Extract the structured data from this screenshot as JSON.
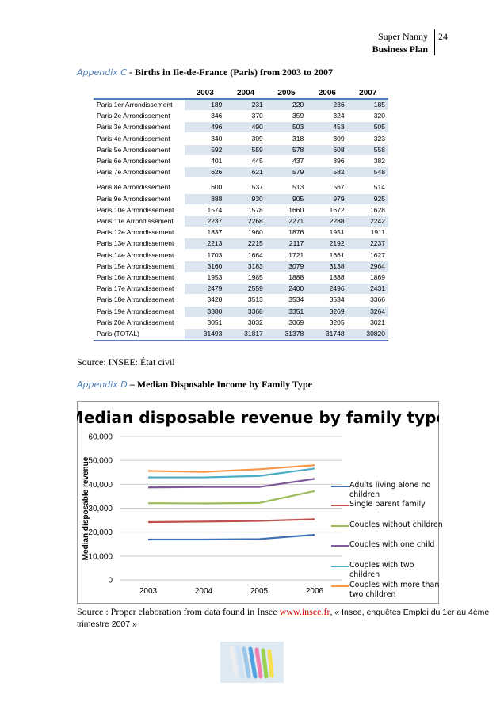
{
  "header": {
    "title": "Super Nanny",
    "subtitle": "Business Plan",
    "page": "24"
  },
  "appendix_c": {
    "label": "Appendix C",
    "title": "- Births in Ile-de-France (Paris) from 2003 to 2007"
  },
  "table": {
    "columns": [
      "2003",
      "2004",
      "2005",
      "2006",
      "2007"
    ],
    "rows": [
      [
        "Paris 1er Arrondissement",
        189,
        231,
        220,
        236,
        185
      ],
      [
        "Paris 2e  Arrondissement",
        346,
        370,
        359,
        324,
        320
      ],
      [
        "Paris 3e  Arrondissement",
        496,
        490,
        503,
        453,
        505
      ],
      [
        "Paris 4e  Arrondissement",
        340,
        309,
        318,
        309,
        323
      ],
      [
        "Paris 5e  Arrondissement",
        592,
        559,
        578,
        608,
        558
      ],
      [
        "Paris 6e  Arrondissement",
        401,
        445,
        437,
        396,
        382
      ],
      [
        "Paris 7e  Arrondissement",
        626,
        621,
        579,
        582,
        548
      ],
      [
        "Paris 8e  Arrondissement",
        600,
        537,
        513,
        567,
        514
      ],
      [
        "Paris 9e  Arrondissement",
        888,
        930,
        905,
        979,
        925
      ],
      [
        "Paris 10e  Arrondissement",
        1574,
        1578,
        1660,
        1672,
        1628
      ],
      [
        "Paris 11e  Arrondissement",
        2237,
        2268,
        2271,
        2288,
        2242
      ],
      [
        "Paris 12e  Arrondissement",
        1837,
        1960,
        1876,
        1951,
        1911
      ],
      [
        "Paris 13e  Arrondissement",
        2213,
        2215,
        2117,
        2192,
        2237
      ],
      [
        "Paris 14e  Arrondissement",
        1703,
        1664,
        1721,
        1661,
        1627
      ],
      [
        "Paris 15e  Arrondissement",
        3160,
        3183,
        3079,
        3138,
        2964
      ],
      [
        "Paris 16e  Arrondissement",
        1953,
        1985,
        1888,
        1888,
        1869
      ],
      [
        "Paris 17e  Arrondissement",
        2479,
        2559,
        2400,
        2496,
        2431
      ],
      [
        "Paris 18e  Arrondissement",
        3428,
        3513,
        3534,
        3534,
        3366
      ],
      [
        "Paris 19e  Arrondissement",
        3380,
        3368,
        3351,
        3269,
        3264
      ],
      [
        "Paris 20e  Arrondissement",
        3051,
        3032,
        3069,
        3205,
        3021
      ],
      [
        "Paris (TOTAL)",
        31493,
        31817,
        31378,
        31748,
        30820
      ]
    ]
  },
  "source_c": "Source: INSEE: État civil",
  "appendix_d": {
    "label": "Appendix D",
    "title": "– Median Disposable Income by Family Type"
  },
  "chart_data": {
    "type": "line",
    "title": "Median disposable revenue by family type",
    "y_label": "Median disposable revenue",
    "categories": [
      "2003",
      "2004",
      "2005",
      "2006"
    ],
    "ylim": [
      0,
      60000
    ],
    "yticks": [
      0,
      {
        "value": 10000,
        "label": "10,000"
      },
      {
        "value": 20000,
        "label": "20,000"
      },
      {
        "value": 30000,
        "label": "30,000"
      },
      {
        "value": 40000,
        "label": "40,000"
      },
      {
        "value": 50000,
        "label": "50,000"
      },
      {
        "value": 60000,
        "label": "60,000"
      }
    ],
    "grid": true,
    "legend": "right",
    "series": [
      {
        "name": "Adults living alone no children",
        "color": "#3f6fb5",
        "values": [
          16900,
          16900,
          17100,
          18900
        ]
      },
      {
        "name": "Single parent family",
        "color": "#c0504d",
        "values": [
          24200,
          24400,
          24700,
          25400
        ]
      },
      {
        "name": "Couples without children",
        "color": "#9bbb59",
        "values": [
          32100,
          32000,
          32200,
          37200
        ]
      },
      {
        "name": "Couples with one child",
        "color": "#7e5a9b",
        "values": [
          38700,
          38900,
          38900,
          42300
        ]
      },
      {
        "name": "Couples with two children",
        "color": "#4bacc6",
        "values": [
          42900,
          42900,
          43500,
          46600
        ]
      },
      {
        "name": "Couples with more than two children",
        "color": "#f79646",
        "values": [
          45600,
          45200,
          46300,
          48000
        ]
      }
    ]
  },
  "source_d": {
    "text": "Source : Proper elaboration from data found in Insee ",
    "link": "www.insee.fr",
    "rest": ", « Insee, enquêtes Emploi du 1er au 4ème trimestre 2007 »"
  }
}
